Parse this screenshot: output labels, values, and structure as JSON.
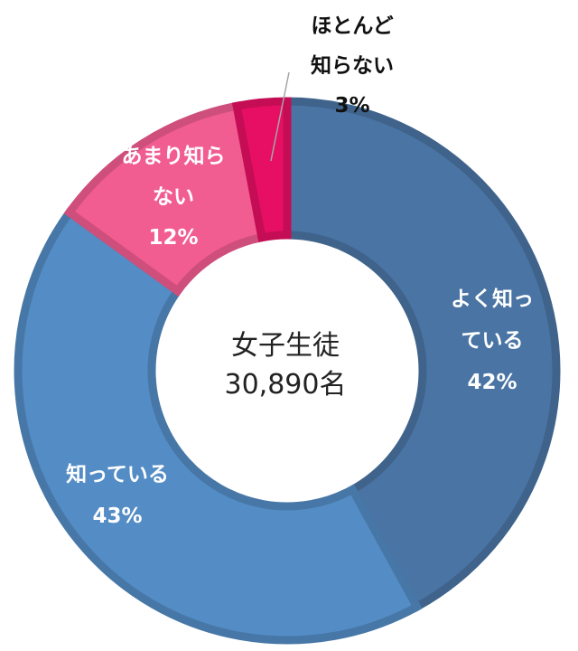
{
  "chart_data": {
    "type": "pie",
    "variant": "donut",
    "center_label": {
      "line1": "女子生徒",
      "line2": "30,890名"
    },
    "slices": [
      {
        "name": "よく知っている",
        "value": 42,
        "label_lines": [
          "よく知っ",
          "ている",
          "42%"
        ],
        "color": "#4a74a4",
        "label_color": "#ffffff"
      },
      {
        "name": "知っている",
        "value": 43,
        "label_lines": [
          "知っている",
          "43%"
        ],
        "color": "#548cc5",
        "label_color": "#ffffff"
      },
      {
        "name": "あまり知らない",
        "value": 12,
        "label_lines": [
          "あまり知ら",
          "ない",
          "12%"
        ],
        "color": "#f25d91",
        "label_color": "#ffffff"
      },
      {
        "name": "ほとんど知らない",
        "value": 3,
        "label_lines": [
          "ほとんど",
          "知らない",
          "3%"
        ],
        "color": "#e60f63",
        "label_color": "#111111"
      }
    ],
    "legend": "none"
  }
}
